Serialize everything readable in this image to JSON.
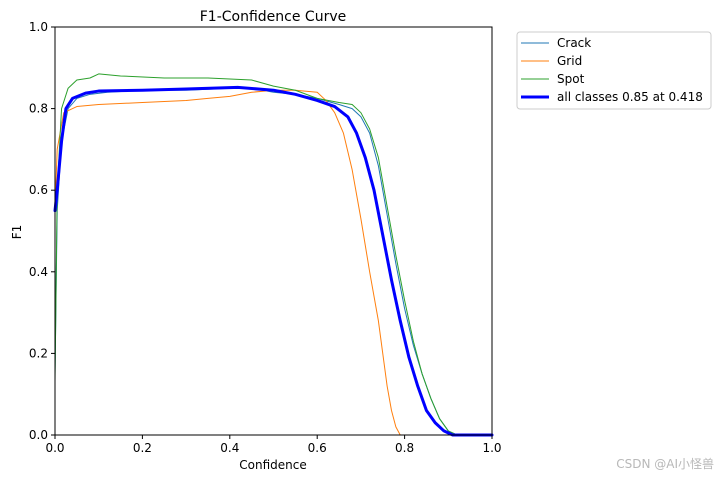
{
  "chart_data": {
    "type": "line",
    "title": "F1-Confidence Curve",
    "xlabel": "Confidence",
    "ylabel": "F1",
    "xlim": [
      0,
      1
    ],
    "ylim": [
      0,
      1
    ],
    "x_ticks": [
      0.0,
      0.2,
      0.4,
      0.6,
      0.8,
      1.0
    ],
    "x_tick_labels": [
      "0.0",
      "0.2",
      "0.4",
      "0.6",
      "0.8",
      "1.0"
    ],
    "y_ticks": [
      0.0,
      0.2,
      0.4,
      0.6,
      0.8,
      1.0
    ],
    "y_tick_labels": [
      "0.0",
      "0.2",
      "0.4",
      "0.6",
      "0.8",
      "1.0"
    ],
    "grid": false,
    "legend_position": "outside-top-right",
    "series": [
      {
        "name": "Crack",
        "color": "#1f77b4",
        "width": 1,
        "points": [
          [
            0,
            0.15
          ],
          [
            0.005,
            0.55
          ],
          [
            0.015,
            0.72
          ],
          [
            0.03,
            0.8
          ],
          [
            0.05,
            0.825
          ],
          [
            0.08,
            0.835
          ],
          [
            0.12,
            0.84
          ],
          [
            0.2,
            0.845
          ],
          [
            0.3,
            0.845
          ],
          [
            0.4,
            0.85
          ],
          [
            0.45,
            0.85
          ],
          [
            0.5,
            0.84
          ],
          [
            0.55,
            0.835
          ],
          [
            0.6,
            0.825
          ],
          [
            0.65,
            0.81
          ],
          [
            0.68,
            0.8
          ],
          [
            0.7,
            0.78
          ],
          [
            0.72,
            0.74
          ],
          [
            0.74,
            0.66
          ],
          [
            0.76,
            0.54
          ],
          [
            0.78,
            0.42
          ],
          [
            0.8,
            0.31
          ],
          [
            0.82,
            0.22
          ],
          [
            0.84,
            0.15
          ],
          [
            0.86,
            0.09
          ],
          [
            0.88,
            0.04
          ],
          [
            0.9,
            0.01
          ],
          [
            0.92,
            0.0
          ],
          [
            1.0,
            0.0
          ]
        ]
      },
      {
        "name": "Grid",
        "color": "#ff7f0e",
        "width": 1,
        "points": [
          [
            0,
            0.55
          ],
          [
            0.005,
            0.7
          ],
          [
            0.02,
            0.79
          ],
          [
            0.05,
            0.805
          ],
          [
            0.1,
            0.81
          ],
          [
            0.2,
            0.815
          ],
          [
            0.3,
            0.82
          ],
          [
            0.35,
            0.825
          ],
          [
            0.4,
            0.83
          ],
          [
            0.45,
            0.84
          ],
          [
            0.5,
            0.845
          ],
          [
            0.55,
            0.845
          ],
          [
            0.6,
            0.84
          ],
          [
            0.62,
            0.82
          ],
          [
            0.64,
            0.79
          ],
          [
            0.66,
            0.74
          ],
          [
            0.68,
            0.65
          ],
          [
            0.7,
            0.53
          ],
          [
            0.72,
            0.4
          ],
          [
            0.74,
            0.28
          ],
          [
            0.75,
            0.2
          ],
          [
            0.76,
            0.12
          ],
          [
            0.77,
            0.06
          ],
          [
            0.78,
            0.02
          ],
          [
            0.79,
            0.0
          ],
          [
            1.0,
            0.0
          ]
        ]
      },
      {
        "name": "Spot",
        "color": "#2ca02c",
        "width": 1,
        "points": [
          [
            0,
            0.13
          ],
          [
            0.005,
            0.6
          ],
          [
            0.015,
            0.8
          ],
          [
            0.03,
            0.85
          ],
          [
            0.05,
            0.87
          ],
          [
            0.08,
            0.875
          ],
          [
            0.1,
            0.885
          ],
          [
            0.15,
            0.88
          ],
          [
            0.25,
            0.875
          ],
          [
            0.35,
            0.875
          ],
          [
            0.45,
            0.87
          ],
          [
            0.5,
            0.855
          ],
          [
            0.55,
            0.845
          ],
          [
            0.6,
            0.825
          ],
          [
            0.65,
            0.815
          ],
          [
            0.68,
            0.81
          ],
          [
            0.7,
            0.79
          ],
          [
            0.72,
            0.75
          ],
          [
            0.74,
            0.68
          ],
          [
            0.76,
            0.56
          ],
          [
            0.78,
            0.44
          ],
          [
            0.8,
            0.33
          ],
          [
            0.82,
            0.23
          ],
          [
            0.84,
            0.15
          ],
          [
            0.86,
            0.09
          ],
          [
            0.88,
            0.04
          ],
          [
            0.9,
            0.01
          ],
          [
            0.92,
            0.0
          ],
          [
            1.0,
            0.0
          ]
        ]
      },
      {
        "name": "all classes 0.85 at 0.418",
        "color": "#0000ff",
        "width": 3,
        "points": [
          [
            0,
            0.55
          ],
          [
            0.005,
            0.6
          ],
          [
            0.015,
            0.72
          ],
          [
            0.025,
            0.8
          ],
          [
            0.04,
            0.825
          ],
          [
            0.07,
            0.838
          ],
          [
            0.1,
            0.843
          ],
          [
            0.2,
            0.845
          ],
          [
            0.3,
            0.848
          ],
          [
            0.418,
            0.852
          ],
          [
            0.5,
            0.845
          ],
          [
            0.55,
            0.835
          ],
          [
            0.6,
            0.82
          ],
          [
            0.64,
            0.805
          ],
          [
            0.67,
            0.78
          ],
          [
            0.69,
            0.74
          ],
          [
            0.71,
            0.68
          ],
          [
            0.73,
            0.6
          ],
          [
            0.75,
            0.49
          ],
          [
            0.77,
            0.38
          ],
          [
            0.79,
            0.28
          ],
          [
            0.81,
            0.19
          ],
          [
            0.83,
            0.12
          ],
          [
            0.85,
            0.06
          ],
          [
            0.87,
            0.03
          ],
          [
            0.89,
            0.01
          ],
          [
            0.91,
            0.0
          ],
          [
            1.0,
            0.0
          ]
        ]
      }
    ]
  },
  "watermark": "CSDN @AI小怪兽"
}
